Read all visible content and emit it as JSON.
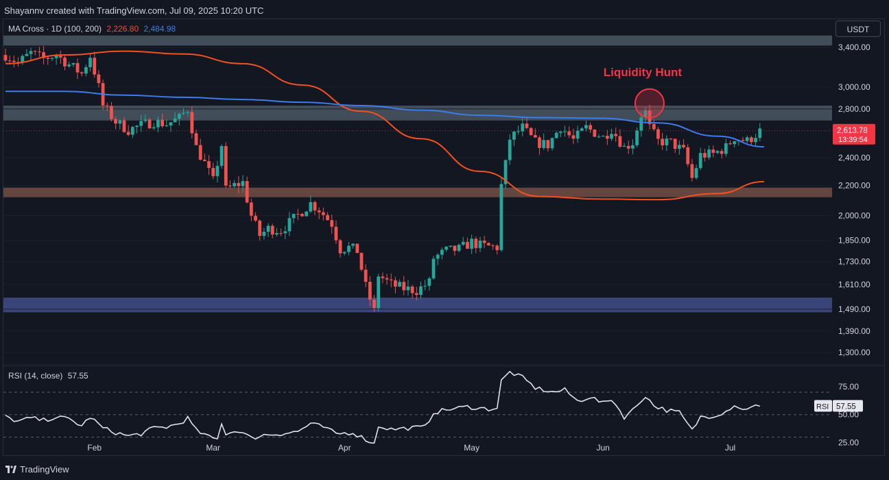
{
  "header": {
    "credit": "Shayannv created with TradingView.com, Jul 09, 2025 10:20 UTC"
  },
  "legend": {
    "label": "MA Cross · 1D (100, 200)",
    "ma100": "2,226.80",
    "ma200": "2,484.98"
  },
  "currency_button": "USDT",
  "footer": {
    "brand": "TradingView"
  },
  "colors": {
    "background": "#131722",
    "up": "#26a69a",
    "down": "#ef5350",
    "ma100": "#f4511e",
    "ma200": "#3d7cf0",
    "annotation": "#f23645"
  },
  "chart_data": [
    {
      "type": "candlestick",
      "yscale": "log",
      "ylim": [
        1250,
        3700
      ],
      "xlim": [
        "2025-01-11",
        "2025-07-15"
      ],
      "y_ticks": [
        {
          "v": 3400,
          "t": "3,400.00"
        },
        {
          "v": 3000,
          "t": "3,000.00"
        },
        {
          "v": 2800,
          "t": "2,800.00"
        },
        {
          "v": 2400,
          "t": "2,400.00"
        },
        {
          "v": 2200,
          "t": "2,200.00"
        },
        {
          "v": 2000,
          "t": "2,000.00"
        },
        {
          "v": 1850,
          "t": "1,850.00"
        },
        {
          "v": 1730,
          "t": "1,730.00"
        },
        {
          "v": 1610,
          "t": "1,610.00"
        },
        {
          "v": 1490,
          "t": "1,490.00"
        },
        {
          "v": 1390,
          "t": "1,390.00"
        },
        {
          "v": 1300,
          "t": "1,300.00"
        }
      ],
      "x_ticks": [
        {
          "d": "2025-02-01",
          "t": "Feb"
        },
        {
          "d": "2025-03-01",
          "t": "Mar"
        },
        {
          "d": "2025-04-01",
          "t": "Apr"
        },
        {
          "d": "2025-05-01",
          "t": "May"
        },
        {
          "d": "2025-06-01",
          "t": "Jun"
        },
        {
          "d": "2025-07-01",
          "t": "Jul"
        }
      ],
      "zones": [
        {
          "name": "supply",
          "y1": 3420,
          "y2": 3530,
          "color": "#4e5b66"
        },
        {
          "name": "resistance",
          "y1": 2700,
          "y2": 2830,
          "color": "#4e5b66"
        },
        {
          "name": "support",
          "y1": 2120,
          "y2": 2185,
          "color": "#7a5246"
        },
        {
          "name": "demand",
          "y1": 1475,
          "y2": 1545,
          "color": "#44508f"
        }
      ],
      "close_path": [
        [
          "2025-01-11",
          3320
        ],
        [
          "2025-01-14",
          3240
        ],
        [
          "2025-01-17",
          3340
        ],
        [
          "2025-01-20",
          3280
        ],
        [
          "2025-01-23",
          3320
        ],
        [
          "2025-01-26",
          3220
        ],
        [
          "2025-01-29",
          3130
        ],
        [
          "2025-01-31",
          3310
        ],
        [
          "2025-02-02",
          3000
        ],
        [
          "2025-02-03",
          2830
        ],
        [
          "2025-02-06",
          2690
        ],
        [
          "2025-02-09",
          2620
        ],
        [
          "2025-02-12",
          2660
        ],
        [
          "2025-02-15",
          2690
        ],
        [
          "2025-02-18",
          2670
        ],
        [
          "2025-02-21",
          2720
        ],
        [
          "2025-02-23",
          2800
        ],
        [
          "2025-02-25",
          2480
        ],
        [
          "2025-02-27",
          2360
        ],
        [
          "2025-03-01",
          2230
        ],
        [
          "2025-03-03",
          2500
        ],
        [
          "2025-03-04",
          2170
        ],
        [
          "2025-03-06",
          2200
        ],
        [
          "2025-03-08",
          2220
        ],
        [
          "2025-03-10",
          2000
        ],
        [
          "2025-03-12",
          1880
        ],
        [
          "2025-03-14",
          1920
        ],
        [
          "2025-03-17",
          1910
        ],
        [
          "2025-03-20",
          1980
        ],
        [
          "2025-03-24",
          2080
        ],
        [
          "2025-03-26",
          2040
        ],
        [
          "2025-03-29",
          1950
        ],
        [
          "2025-03-31",
          1800
        ],
        [
          "2025-04-02",
          1810
        ],
        [
          "2025-04-04",
          1790
        ],
        [
          "2025-04-06",
          1600
        ],
        [
          "2025-04-08",
          1480
        ],
        [
          "2025-04-09",
          1660
        ],
        [
          "2025-04-12",
          1610
        ],
        [
          "2025-04-15",
          1590
        ],
        [
          "2025-04-18",
          1580
        ],
        [
          "2025-04-21",
          1620
        ],
        [
          "2025-04-22",
          1750
        ],
        [
          "2025-04-25",
          1790
        ],
        [
          "2025-04-28",
          1800
        ],
        [
          "2025-05-01",
          1840
        ],
        [
          "2025-05-03",
          1820
        ],
        [
          "2025-05-07",
          1810
        ],
        [
          "2025-05-08",
          2200
        ],
        [
          "2025-05-09",
          2350
        ],
        [
          "2025-05-10",
          2550
        ],
        [
          "2025-05-13",
          2640
        ],
        [
          "2025-05-16",
          2520
        ],
        [
          "2025-05-19",
          2500
        ],
        [
          "2025-05-22",
          2650
        ],
        [
          "2025-05-25",
          2540
        ],
        [
          "2025-05-28",
          2640
        ],
        [
          "2025-06-01",
          2560
        ],
        [
          "2025-06-03",
          2630
        ],
        [
          "2025-06-06",
          2480
        ],
        [
          "2025-06-08",
          2520
        ],
        [
          "2025-06-10",
          2750
        ],
        [
          "2025-06-11",
          2770
        ],
        [
          "2025-06-12",
          2640
        ],
        [
          "2025-06-14",
          2530
        ],
        [
          "2025-06-17",
          2520
        ],
        [
          "2025-06-20",
          2450
        ],
        [
          "2025-06-22",
          2250
        ],
        [
          "2025-06-24",
          2420
        ],
        [
          "2025-06-27",
          2430
        ],
        [
          "2025-06-30",
          2480
        ],
        [
          "2025-07-02",
          2560
        ],
        [
          "2025-07-05",
          2530
        ],
        [
          "2025-07-08",
          2610
        ]
      ],
      "ma100_path": [
        [
          "2025-01-11",
          3230
        ],
        [
          "2025-01-25",
          3320
        ],
        [
          "2025-02-08",
          3360
        ],
        [
          "2025-02-22",
          3330
        ],
        [
          "2025-03-08",
          3230
        ],
        [
          "2025-03-22",
          3020
        ],
        [
          "2025-04-05",
          2780
        ],
        [
          "2025-04-19",
          2550
        ],
        [
          "2025-05-03",
          2300
        ],
        [
          "2025-05-17",
          2125
        ],
        [
          "2025-05-31",
          2108
        ],
        [
          "2025-06-14",
          2104
        ],
        [
          "2025-06-28",
          2145
        ],
        [
          "2025-07-09",
          2227
        ]
      ],
      "ma200_path": [
        [
          "2025-01-11",
          2960
        ],
        [
          "2025-01-25",
          2960
        ],
        [
          "2025-02-08",
          2925
        ],
        [
          "2025-02-22",
          2905
        ],
        [
          "2025-03-08",
          2885
        ],
        [
          "2025-03-22",
          2860
        ],
        [
          "2025-04-05",
          2830
        ],
        [
          "2025-04-19",
          2790
        ],
        [
          "2025-05-03",
          2745
        ],
        [
          "2025-05-17",
          2725
        ],
        [
          "2025-05-31",
          2720
        ],
        [
          "2025-06-14",
          2680
        ],
        [
          "2025-06-28",
          2570
        ],
        [
          "2025-07-09",
          2485
        ]
      ],
      "last_price": {
        "value": 2613.78,
        "label": "2,613.78",
        "countdown": "13:39:54"
      },
      "annotation": {
        "text": "Liquidity Hunt",
        "date": "2025-06-11",
        "price": 2850
      }
    },
    {
      "type": "line",
      "name": "RSI (14, close)",
      "value": "57.55",
      "badge": "RSI",
      "ylim": [
        15,
        92
      ],
      "y_ticks": [
        {
          "v": 75,
          "t": "75.00"
        },
        {
          "v": 50,
          "t": "50.00"
        },
        {
          "v": 25,
          "t": "25.00"
        }
      ],
      "bands": [
        70,
        50,
        30
      ],
      "series": [
        [
          "2025-01-11",
          48
        ],
        [
          "2025-01-14",
          44
        ],
        [
          "2025-01-17",
          47
        ],
        [
          "2025-01-20",
          45
        ],
        [
          "2025-01-23",
          48
        ],
        [
          "2025-01-26",
          46
        ],
        [
          "2025-01-29",
          40
        ],
        [
          "2025-01-31",
          48
        ],
        [
          "2025-02-03",
          38
        ],
        [
          "2025-02-06",
          34
        ],
        [
          "2025-02-09",
          31
        ],
        [
          "2025-02-12",
          33
        ],
        [
          "2025-02-15",
          38
        ],
        [
          "2025-02-18",
          39
        ],
        [
          "2025-02-21",
          42
        ],
        [
          "2025-02-23",
          47
        ],
        [
          "2025-02-25",
          36
        ],
        [
          "2025-02-28",
          30
        ],
        [
          "2025-03-02",
          28
        ],
        [
          "2025-03-03",
          43
        ],
        [
          "2025-03-04",
          33
        ],
        [
          "2025-03-07",
          36
        ],
        [
          "2025-03-10",
          29
        ],
        [
          "2025-03-13",
          32
        ],
        [
          "2025-03-17",
          33
        ],
        [
          "2025-03-21",
          35
        ],
        [
          "2025-03-24",
          42
        ],
        [
          "2025-03-27",
          39
        ],
        [
          "2025-03-30",
          33
        ],
        [
          "2025-04-03",
          34
        ],
        [
          "2025-04-06",
          28
        ],
        [
          "2025-04-08",
          24
        ],
        [
          "2025-04-09",
          40
        ],
        [
          "2025-04-12",
          37
        ],
        [
          "2025-04-16",
          38
        ],
        [
          "2025-04-20",
          39
        ],
        [
          "2025-04-22",
          52
        ],
        [
          "2025-04-26",
          55
        ],
        [
          "2025-04-30",
          57
        ],
        [
          "2025-05-05",
          55
        ],
        [
          "2025-05-07",
          56
        ],
        [
          "2025-05-08",
          80
        ],
        [
          "2025-05-10",
          88
        ],
        [
          "2025-05-13",
          83
        ],
        [
          "2025-05-16",
          74
        ],
        [
          "2025-05-20",
          70
        ],
        [
          "2025-05-23",
          72
        ],
        [
          "2025-05-26",
          62
        ],
        [
          "2025-05-29",
          66
        ],
        [
          "2025-06-01",
          60
        ],
        [
          "2025-06-03",
          64
        ],
        [
          "2025-06-06",
          48
        ],
        [
          "2025-06-08",
          54
        ],
        [
          "2025-06-11",
          67
        ],
        [
          "2025-06-13",
          58
        ],
        [
          "2025-06-16",
          54
        ],
        [
          "2025-06-19",
          52
        ],
        [
          "2025-06-22",
          36
        ],
        [
          "2025-06-24",
          48
        ],
        [
          "2025-06-27",
          49
        ],
        [
          "2025-06-30",
          53
        ],
        [
          "2025-07-02",
          59
        ],
        [
          "2025-07-04",
          54
        ],
        [
          "2025-07-06",
          58
        ],
        [
          "2025-07-08",
          57.55
        ]
      ]
    }
  ]
}
